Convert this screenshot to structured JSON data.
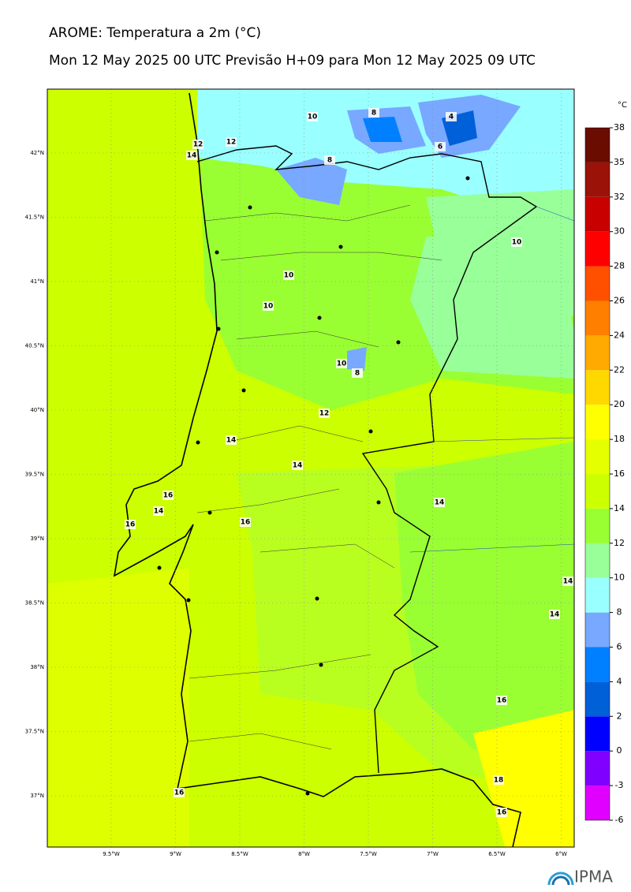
{
  "header": {
    "title": "AROME: Temperatura a 2m (°C)",
    "subtitle": "Mon 12 May 2025 00 UTC Previsão H+09 para Mon 12 May 2025 09 UTC"
  },
  "map": {
    "lat_labels": [
      "42°N",
      "41.5°N",
      "41°N",
      "40.5°N",
      "40°N",
      "39.5°N",
      "39°N",
      "38.5°N",
      "38°N",
      "37.5°N",
      "37°N"
    ],
    "lon_labels": [
      "9.5°W",
      "9°W",
      "8.5°W",
      "8°W",
      "7.5°W",
      "7°W",
      "6.5°W",
      "6°W"
    ],
    "contour_labels": [
      "10",
      "8",
      "4",
      "6",
      "12",
      "12",
      "14",
      "8",
      "10",
      "10",
      "10",
      "10",
      "8",
      "12",
      "14",
      "14",
      "14",
      "16",
      "14",
      "16",
      "16",
      "14",
      "14",
      "16",
      "18",
      "16",
      "16"
    ]
  },
  "colorbar": {
    "unit": "°C",
    "ticks": [
      -6,
      -3,
      0,
      2,
      4,
      6,
      8,
      10,
      12,
      14,
      16,
      18,
      20,
      22,
      24,
      26,
      28,
      30,
      32,
      35,
      38
    ],
    "colors": [
      "#e000ff",
      "#8000ff",
      "#0000ff",
      "#0060d8",
      "#0080ff",
      "#78a8ff",
      "#99ffff",
      "#99ff99",
      "#99ff33",
      "#ccff00",
      "#e6ff00",
      "#ffff00",
      "#ffd800",
      "#ffaa00",
      "#ff8000",
      "#ff5000",
      "#ff0000",
      "#c80000",
      "#9b1208",
      "#6b0c00"
    ]
  },
  "logo": {
    "text": "IPMA"
  }
}
